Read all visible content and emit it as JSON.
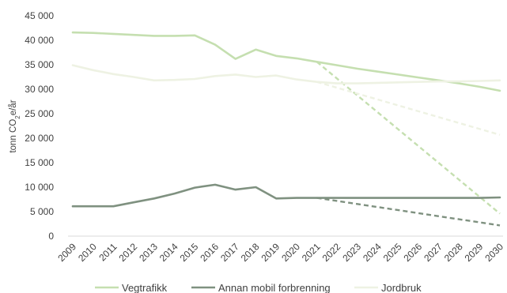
{
  "chart_data": {
    "type": "line",
    "ylabel_parts": [
      "tonn CO",
      "2",
      "e/år"
    ],
    "ylim": [
      0,
      45000
    ],
    "yticks": [
      {
        "value": 0,
        "label": "0"
      },
      {
        "value": 5000,
        "label": "5 000"
      },
      {
        "value": 10000,
        "label": "10 000"
      },
      {
        "value": 15000,
        "label": "15 000"
      },
      {
        "value": 20000,
        "label": "20 000"
      },
      {
        "value": 25000,
        "label": "25 000"
      },
      {
        "value": 30000,
        "label": "30 000"
      },
      {
        "value": 35000,
        "label": "35 000"
      },
      {
        "value": 40000,
        "label": "40 000"
      },
      {
        "value": 45000,
        "label": "45 000"
      }
    ],
    "x": [
      "2009",
      "2010",
      "2011",
      "2012",
      "2013",
      "2014",
      "2015",
      "2016",
      "2017",
      "2018",
      "2019",
      "2020",
      "2021",
      "2022",
      "2023",
      "2024",
      "2025",
      "2026",
      "2027",
      "2028",
      "2029",
      "2030"
    ],
    "grid": false,
    "legend_position": "bottom",
    "series": [
      {
        "name": "Vegtrafikk",
        "color": "#c5dfb0",
        "values": [
          41600,
          41500,
          41300,
          41100,
          40900,
          40900,
          41000,
          39100,
          36200,
          38100,
          36800,
          36300,
          35600,
          34900,
          34200,
          33600,
          33000,
          32400,
          31800,
          31200,
          30500,
          29700
        ],
        "target": {
          "color": "#c5dfb0",
          "points": [
            [
              2021,
              35600
            ],
            [
              2030,
              4600
            ]
          ]
        }
      },
      {
        "name": "Annan mobil forbrenning",
        "color": "#7f9180",
        "values": [
          6100,
          6100,
          6100,
          6900,
          7700,
          8700,
          9900,
          10500,
          9500,
          10000,
          7700,
          7800,
          7800,
          7800,
          7800,
          7800,
          7800,
          7800,
          7800,
          7800,
          7800,
          7900
        ],
        "target": {
          "color": "#7f9180",
          "points": [
            [
              2021,
              7800
            ],
            [
              2030,
              2200
            ]
          ]
        }
      },
      {
        "name": "Jordbruk",
        "color": "#eef2e3",
        "values": [
          34900,
          33900,
          33100,
          32500,
          31800,
          31900,
          32100,
          32700,
          33000,
          32500,
          32800,
          32000,
          31500,
          31200,
          31200,
          31300,
          31400,
          31500,
          31600,
          31600,
          31700,
          31800
        ],
        "target": {
          "color": "#eef2e3",
          "points": [
            [
              2021,
              31500
            ],
            [
              2030,
              20700
            ]
          ]
        }
      }
    ]
  }
}
